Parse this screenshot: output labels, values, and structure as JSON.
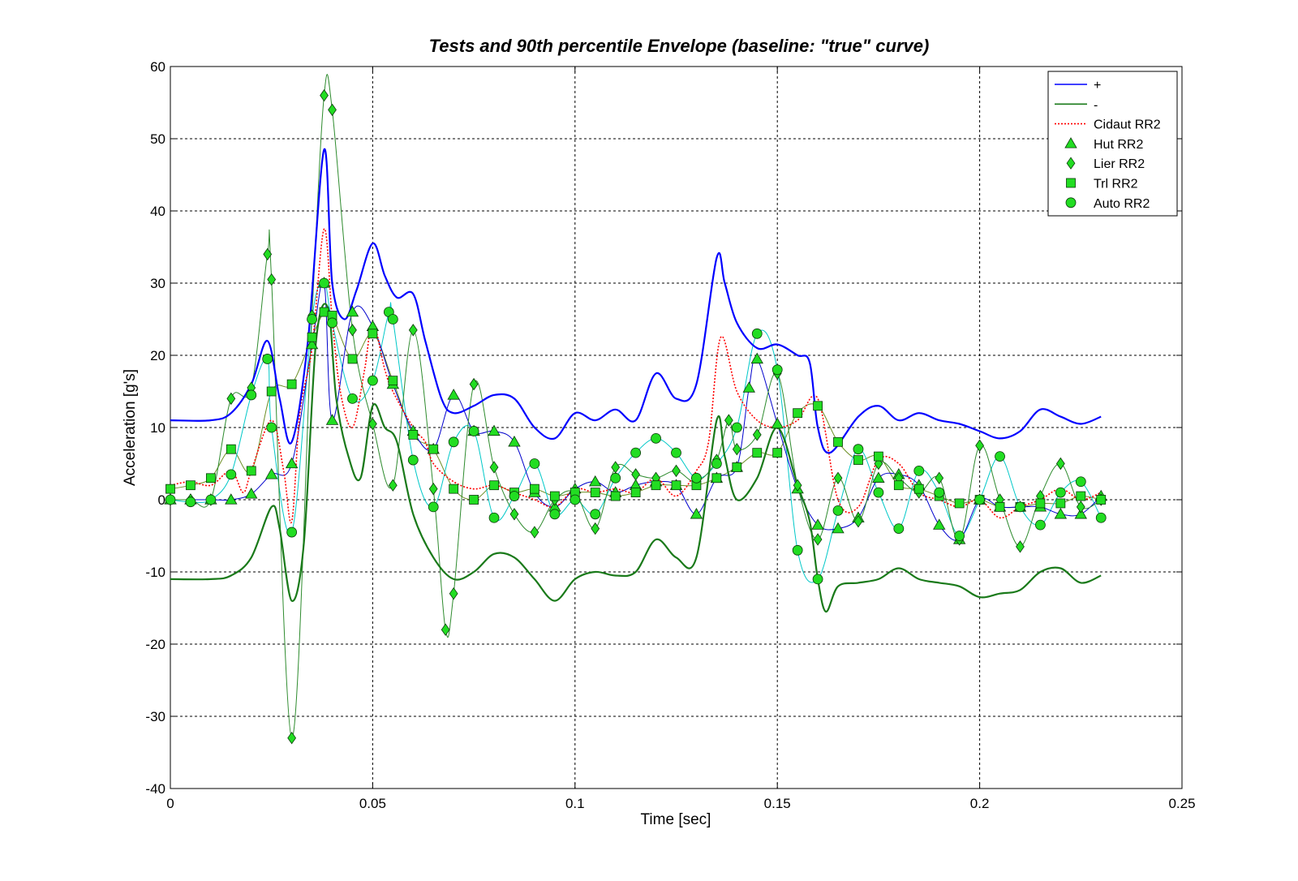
{
  "chart_data": {
    "type": "line",
    "title": "Tests and 90th percentile Envelope (baseline: \"true\" curve)",
    "xlabel": "Time [sec]",
    "ylabel": "Acceleration [g's]",
    "xlim": [
      0,
      0.25
    ],
    "ylim": [
      -40,
      60
    ],
    "xticks": [
      0,
      0.05,
      0.1,
      0.15,
      0.2,
      0.25
    ],
    "xtick_labels": [
      "0",
      "0.05",
      "0.1",
      "0.15",
      "0.2",
      "0.25"
    ],
    "yticks": [
      -40,
      -30,
      -20,
      -10,
      0,
      10,
      20,
      30,
      40,
      50,
      60
    ],
    "ytick_labels": [
      "-40",
      "-30",
      "-20",
      "-10",
      "0",
      "10",
      "20",
      "30",
      "40",
      "50",
      "60"
    ],
    "grid": true,
    "legend_position": "top-right",
    "series": [
      {
        "name": "+",
        "color": "#0000ff",
        "line": "solid-thick",
        "marker": "none",
        "x": [
          0,
          0.01,
          0.015,
          0.02,
          0.024,
          0.027,
          0.03,
          0.034,
          0.038,
          0.04,
          0.043,
          0.046,
          0.05,
          0.053,
          0.056,
          0.06,
          0.063,
          0.067,
          0.07,
          0.075,
          0.08,
          0.085,
          0.09,
          0.095,
          0.1,
          0.105,
          0.11,
          0.115,
          0.12,
          0.125,
          0.13,
          0.135,
          0.137,
          0.14,
          0.145,
          0.15,
          0.155,
          0.158,
          0.16,
          0.163,
          0.17,
          0.175,
          0.18,
          0.185,
          0.19,
          0.195,
          0.2,
          0.205,
          0.21,
          0.215,
          0.22,
          0.225,
          0.23
        ],
        "y": [
          11,
          11,
          12,
          16,
          22,
          14,
          8,
          22,
          48.5,
          30,
          25,
          29,
          35.5,
          31,
          28,
          28.5,
          22,
          14,
          12,
          13,
          14.5,
          14,
          10,
          8.5,
          12,
          11,
          12.5,
          11,
          17.5,
          14,
          16,
          33.5,
          30,
          24.5,
          21,
          21.5,
          20,
          19,
          10,
          6.5,
          11.5,
          13,
          11,
          12,
          11,
          10.5,
          9.5,
          8.5,
          9.5,
          12.5,
          11.5,
          10.5,
          11.5
        ]
      },
      {
        "name": "-",
        "color": "#1a7a1a",
        "line": "solid-thick",
        "marker": "none",
        "x": [
          0,
          0.01,
          0.015,
          0.02,
          0.025,
          0.027,
          0.03,
          0.033,
          0.036,
          0.039,
          0.041,
          0.044,
          0.047,
          0.05,
          0.053,
          0.056,
          0.06,
          0.065,
          0.07,
          0.075,
          0.08,
          0.085,
          0.09,
          0.095,
          0.1,
          0.105,
          0.11,
          0.115,
          0.12,
          0.125,
          0.13,
          0.135,
          0.137,
          0.14,
          0.145,
          0.15,
          0.155,
          0.158,
          0.16,
          0.162,
          0.165,
          0.17,
          0.175,
          0.18,
          0.185,
          0.19,
          0.195,
          0.2,
          0.205,
          0.21,
          0.215,
          0.22,
          0.225,
          0.23
        ],
        "y": [
          -11,
          -11,
          -10.5,
          -8,
          -1,
          -4,
          -14,
          -6,
          22,
          26.5,
          14,
          6,
          3,
          13,
          10,
          8,
          -2,
          -8,
          -11,
          -10,
          -7.5,
          -8,
          -11,
          -14,
          -11,
          -10,
          -10.5,
          -10,
          -5.5,
          -8,
          -8,
          11,
          6,
          0,
          3,
          10,
          2,
          -3,
          -11,
          -15.5,
          -12,
          -11.5,
          -11,
          -9.5,
          -11,
          -11.5,
          -12,
          -13.5,
          -13,
          -12.5,
          -10,
          -9.5,
          -11.5,
          -10.5
        ]
      },
      {
        "name": "Cidaut RR2",
        "color": "#ff0000",
        "line": "dotted",
        "marker": "none",
        "x": [
          0,
          0.005,
          0.01,
          0.015,
          0.018,
          0.02,
          0.025,
          0.028,
          0.03,
          0.032,
          0.035,
          0.038,
          0.04,
          0.042,
          0.045,
          0.048,
          0.05,
          0.053,
          0.055,
          0.06,
          0.063,
          0.065,
          0.07,
          0.075,
          0.08,
          0.085,
          0.09,
          0.095,
          0.1,
          0.105,
          0.11,
          0.115,
          0.12,
          0.125,
          0.13,
          0.133,
          0.136,
          0.14,
          0.145,
          0.15,
          0.155,
          0.16,
          0.165,
          0.17,
          0.175,
          0.18,
          0.185,
          0.19,
          0.195,
          0.2,
          0.205,
          0.21,
          0.215,
          0.22,
          0.225,
          0.23
        ],
        "y": [
          2,
          2.5,
          2,
          4,
          1,
          4,
          11,
          4,
          -3,
          12,
          21,
          37.5,
          25,
          15,
          10,
          18,
          24.5,
          18,
          15,
          10,
          8,
          5,
          2.5,
          1.5,
          2,
          1,
          0,
          -1,
          1.5,
          1,
          1.5,
          1,
          3,
          0.5,
          4,
          8,
          22.5,
          15,
          11,
          10,
          11,
          14,
          0,
          -1,
          5.5,
          5,
          1,
          0,
          -1,
          0,
          -2.5,
          -1,
          0,
          1.5,
          0,
          1
        ]
      },
      {
        "name": "Hut RR2",
        "color": "#0000cc",
        "line": "thin",
        "marker": "triangle",
        "x": [
          0,
          0.005,
          0.01,
          0.015,
          0.02,
          0.025,
          0.03,
          0.035,
          0.038,
          0.04,
          0.045,
          0.05,
          0.055,
          0.06,
          0.065,
          0.07,
          0.075,
          0.08,
          0.085,
          0.09,
          0.095,
          0.1,
          0.105,
          0.11,
          0.115,
          0.12,
          0.125,
          0.13,
          0.135,
          0.14,
          0.143,
          0.145,
          0.15,
          0.155,
          0.16,
          0.165,
          0.17,
          0.175,
          0.18,
          0.185,
          0.19,
          0.195,
          0.2,
          0.205,
          0.21,
          0.215,
          0.22,
          0.225,
          0.23
        ],
        "y": [
          0,
          0,
          0,
          0,
          0.8,
          3.5,
          5,
          21.5,
          30,
          11,
          26,
          24,
          16,
          9.5,
          7,
          14.5,
          9.5,
          9.5,
          8,
          1,
          -1,
          1.5,
          2.5,
          1,
          2,
          2.5,
          2,
          -2,
          3,
          4.5,
          15.5,
          19.5,
          10.5,
          1.5,
          -3.5,
          -4,
          -2.5,
          3,
          3.5,
          2,
          -3.5,
          -5.5,
          0,
          -1,
          -1,
          -1,
          -2,
          -2,
          0.5
        ]
      },
      {
        "name": "Lier RR2",
        "color": "#2e8b2e",
        "line": "thin",
        "marker": "diamond",
        "x": [
          0,
          0.005,
          0.01,
          0.015,
          0.02,
          0.024,
          0.025,
          0.03,
          0.035,
          0.038,
          0.04,
          0.045,
          0.05,
          0.055,
          0.06,
          0.065,
          0.068,
          0.07,
          0.075,
          0.08,
          0.085,
          0.09,
          0.095,
          0.1,
          0.105,
          0.11,
          0.115,
          0.12,
          0.125,
          0.13,
          0.135,
          0.138,
          0.14,
          0.145,
          0.15,
          0.155,
          0.16,
          0.165,
          0.17,
          0.175,
          0.18,
          0.185,
          0.19,
          0.195,
          0.2,
          0.205,
          0.21,
          0.215,
          0.22,
          0.225,
          0.23
        ],
        "y": [
          0,
          0,
          0,
          14,
          15.5,
          34,
          30.5,
          -33,
          25.5,
          56,
          54,
          23.5,
          10.5,
          2,
          23.5,
          1.5,
          -18,
          -13,
          16,
          4.5,
          -2,
          -4.5,
          0,
          1,
          -4,
          4.5,
          3.5,
          3,
          4,
          2.5,
          5.5,
          11,
          7,
          9,
          17.5,
          2,
          -5.5,
          3,
          -3,
          5,
          3,
          1,
          3,
          -5.5,
          7.5,
          0,
          -6.5,
          0.5,
          5,
          -1,
          0
        ]
      },
      {
        "name": "Trl RR2",
        "color": "#6b8e23",
        "line": "thin",
        "marker": "square",
        "x": [
          0,
          0.005,
          0.01,
          0.015,
          0.02,
          0.025,
          0.03,
          0.035,
          0.038,
          0.04,
          0.045,
          0.05,
          0.055,
          0.06,
          0.065,
          0.07,
          0.075,
          0.08,
          0.085,
          0.09,
          0.095,
          0.1,
          0.105,
          0.11,
          0.115,
          0.12,
          0.125,
          0.13,
          0.135,
          0.14,
          0.145,
          0.15,
          0.155,
          0.16,
          0.165,
          0.17,
          0.175,
          0.18,
          0.185,
          0.19,
          0.195,
          0.2,
          0.205,
          0.21,
          0.215,
          0.22,
          0.225,
          0.23
        ],
        "y": [
          1.5,
          2,
          3,
          7,
          4,
          15,
          16,
          22.5,
          26,
          25.5,
          19.5,
          23,
          16.5,
          9,
          7,
          1.5,
          0,
          2,
          1,
          1.5,
          0.5,
          1,
          1,
          0.5,
          1,
          2,
          2,
          2,
          3,
          4.5,
          6.5,
          6.5,
          12,
          13,
          8,
          5.5,
          6,
          2,
          1.5,
          0.5,
          -0.5,
          0,
          -1,
          -1,
          -0.5,
          -0.5,
          0.5,
          0
        ]
      },
      {
        "name": "Auto RR2",
        "color": "#00c8c8",
        "line": "thin",
        "marker": "circle",
        "x": [
          0,
          0.005,
          0.01,
          0.015,
          0.02,
          0.024,
          0.025,
          0.03,
          0.035,
          0.038,
          0.04,
          0.045,
          0.05,
          0.054,
          0.055,
          0.06,
          0.065,
          0.07,
          0.075,
          0.08,
          0.085,
          0.09,
          0.095,
          0.1,
          0.105,
          0.11,
          0.115,
          0.12,
          0.125,
          0.13,
          0.135,
          0.14,
          0.145,
          0.15,
          0.155,
          0.16,
          0.165,
          0.17,
          0.175,
          0.18,
          0.185,
          0.19,
          0.195,
          0.2,
          0.205,
          0.21,
          0.215,
          0.22,
          0.225,
          0.23
        ],
        "y": [
          0,
          -0.3,
          0,
          3.5,
          14.5,
          19.5,
          10,
          -4.5,
          25,
          30,
          24.5,
          14,
          16.5,
          26,
          25,
          5.5,
          -1,
          8,
          9.5,
          -2.5,
          0.5,
          5,
          -2,
          0,
          -2,
          3,
          6.5,
          8.5,
          6.5,
          3,
          5,
          10,
          23,
          18,
          -7,
          -11,
          -1.5,
          7,
          1,
          -4,
          4,
          1,
          -5,
          0,
          6,
          -1,
          -3.5,
          1,
          2.5,
          -2.5
        ]
      }
    ]
  },
  "legend": {
    "entries": [
      "+",
      "-",
      "Cidaut RR2",
      "Hut RR2",
      "Lier RR2",
      "Trl RR2",
      "Auto RR2"
    ]
  }
}
